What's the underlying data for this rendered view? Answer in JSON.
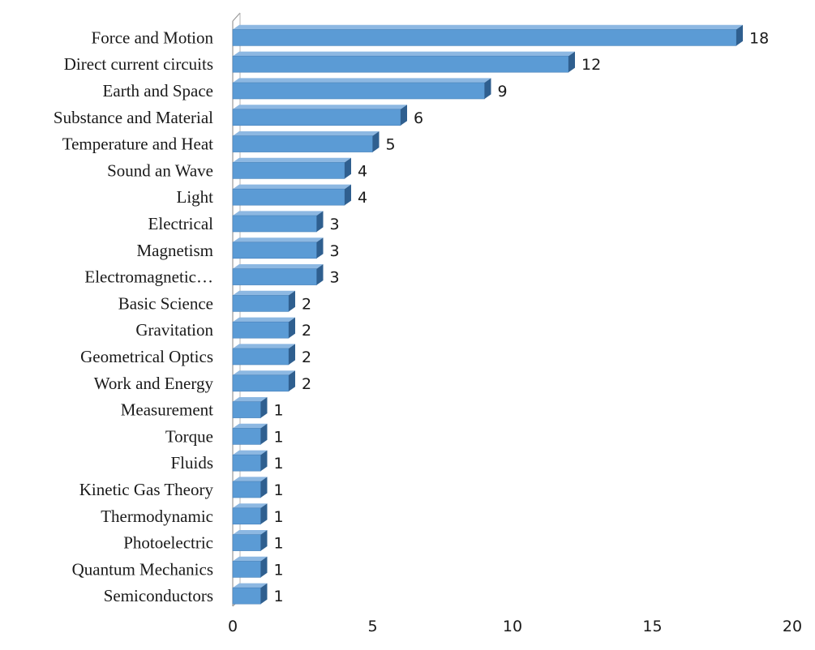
{
  "chart_data": {
    "type": "bar",
    "orientation": "horizontal",
    "categories": [
      "Force and Motion",
      "Direct current circuits",
      "Earth and Space",
      "Substance and Material",
      "Temperature and Heat",
      "Sound an Wave",
      "Light",
      "Electrical",
      "Magnetism",
      "Electromagnetic…",
      "Basic Science",
      "Gravitation",
      "Geometrical Optics",
      "Work and Energy",
      "Measurement",
      "Torque",
      "Fluids",
      "Kinetic Gas Theory",
      "Thermodynamic",
      "Photoelectric",
      "Quantum Mechanics",
      "Semiconductors"
    ],
    "values": [
      18,
      12,
      9,
      6,
      5,
      4,
      4,
      3,
      3,
      3,
      2,
      2,
      2,
      2,
      1,
      1,
      1,
      1,
      1,
      1,
      1,
      1
    ],
    "xlim": [
      0,
      20
    ],
    "xticks": [
      0,
      5,
      10,
      15,
      20
    ],
    "grid": false,
    "legend": "none",
    "bar_color": "#5B9BD5",
    "bar_side_color": "#2F5F8F",
    "title": "",
    "xlabel": "",
    "ylabel": ""
  }
}
